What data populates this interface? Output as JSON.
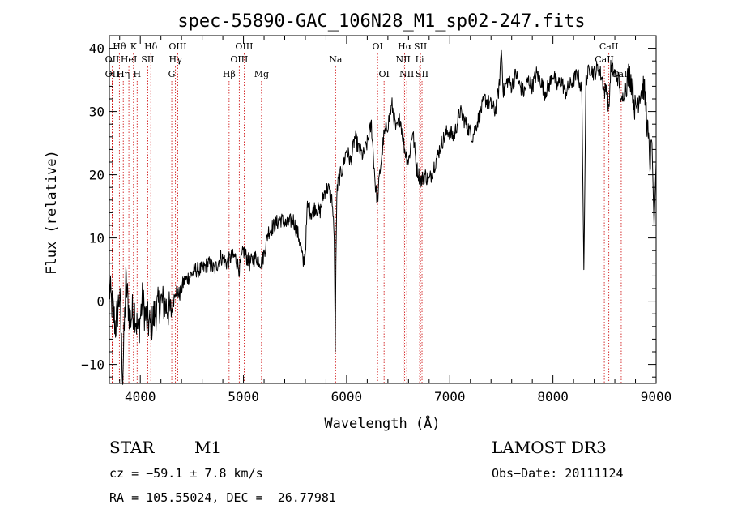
{
  "chart_data": {
    "type": "line",
    "title": "spec-55890-GAC_106N28_M1_sp02-247.fits",
    "xlabel": "Wavelength (Å)",
    "ylabel": "Flux (relative)",
    "xlim": [
      3700,
      9000
    ],
    "ylim": [
      -13,
      42
    ],
    "x_ticks": [
      4000,
      5000,
      6000,
      7000,
      8000,
      9000
    ],
    "y_ticks": [
      -10,
      0,
      10,
      20,
      30,
      40
    ],
    "series": [
      {
        "name": "spectrum",
        "x": [
          3700,
          3760,
          3800,
          3830,
          3860,
          3900,
          3940,
          3980,
          4020,
          4060,
          4100,
          4140,
          4200,
          4260,
          4300,
          4340,
          4380,
          4420,
          4480,
          4540,
          4600,
          4660,
          4720,
          4780,
          4840,
          4880,
          4920,
          4960,
          5000,
          5060,
          5120,
          5180,
          5240,
          5300,
          5360,
          5420,
          5480,
          5540,
          5580,
          5600,
          5620,
          5660,
          5700,
          5740,
          5780,
          5820,
          5860,
          5880,
          5890,
          5896,
          5905,
          5920,
          5960,
          6000,
          6040,
          6080,
          6120,
          6160,
          6200,
          6240,
          6280,
          6300,
          6320,
          6360,
          6400,
          6440,
          6480,
          6520,
          6563,
          6600,
          6640,
          6680,
          6720,
          6760,
          6800,
          6860,
          6920,
          6980,
          7040,
          7100,
          7160,
          7220,
          7280,
          7340,
          7400,
          7440,
          7480,
          7500,
          7520,
          7560,
          7600,
          7640,
          7680,
          7720,
          7760,
          7800,
          7840,
          7880,
          7920,
          7960,
          8000,
          8040,
          8080,
          8120,
          8160,
          8200,
          8240,
          8280,
          8300,
          8320,
          8360,
          8400,
          8440,
          8480,
          8498,
          8520,
          8542,
          8560,
          8600,
          8640,
          8662,
          8700,
          8740,
          8760,
          8800,
          8840,
          8880,
          8900,
          8940,
          8960,
          8980,
          9000
        ],
        "y": [
          2,
          -4,
          1,
          -12,
          3,
          -3,
          -1,
          -5,
          0,
          -3,
          -4,
          -2,
          0,
          -1,
          -2,
          2,
          1,
          3,
          4,
          5,
          5,
          6,
          5,
          7,
          6,
          7,
          7,
          5,
          8,
          6,
          7,
          6,
          11,
          12,
          13,
          12,
          13,
          10,
          6,
          8,
          15,
          14,
          15,
          14,
          17,
          18,
          16,
          10,
          -8,
          6,
          17,
          19,
          21,
          24,
          22,
          26,
          24,
          23,
          25,
          28,
          18,
          16,
          20,
          26,
          28,
          31,
          27,
          29,
          24,
          22,
          27,
          21,
          19,
          20,
          19,
          22,
          25,
          27,
          26,
          30,
          28,
          26,
          29,
          32,
          31,
          30,
          34,
          40,
          33,
          35,
          34,
          36,
          34,
          33,
          35,
          34,
          36,
          35,
          33,
          34,
          36,
          34,
          35,
          33,
          34,
          35,
          36,
          33,
          5,
          35,
          37,
          36,
          37,
          35,
          33,
          34,
          30,
          37,
          36,
          35,
          31,
          34,
          36,
          35,
          30,
          33,
          34,
          31,
          22,
          25,
          12,
          22
        ]
      }
    ],
    "lines": [
      {
        "label": "Hθ",
        "x": 3797,
        "row": 0
      },
      {
        "label": "OII",
        "x": 3727,
        "row": 1
      },
      {
        "label": "OII",
        "x": 3727,
        "row": 2
      },
      {
        "label": "K",
        "x": 3934,
        "row": 0
      },
      {
        "label": "HeI",
        "x": 3889,
        "row": 1
      },
      {
        "label": "Hη",
        "x": 3835,
        "row": 2
      },
      {
        "label": "Hδ",
        "x": 4102,
        "row": 0
      },
      {
        "label": "SII",
        "x": 4072,
        "row": 1
      },
      {
        "label": "H",
        "x": 3969,
        "row": 2
      },
      {
        "label": "OIII",
        "x": 4363,
        "row": 0
      },
      {
        "label": "Hγ",
        "x": 4341,
        "row": 1
      },
      {
        "label": "G",
        "x": 4305,
        "row": 2
      },
      {
        "label": "OIII",
        "x": 5007,
        "row": 0
      },
      {
        "label": "OIII",
        "x": 4959,
        "row": 1
      },
      {
        "label": "Hβ",
        "x": 4861,
        "row": 2
      },
      {
        "label": "Mg",
        "x": 5175,
        "row": 2
      },
      {
        "label": "Na",
        "x": 5893,
        "row": 1
      },
      {
        "label": "OI",
        "x": 6300,
        "row": 0
      },
      {
        "label": "OI",
        "x": 6363,
        "row": 2
      },
      {
        "label": "Hα",
        "x": 6563,
        "row": 0
      },
      {
        "label": "SII",
        "x": 6716,
        "row": 0
      },
      {
        "label": "NII",
        "x": 6548,
        "row": 1
      },
      {
        "label": "Li",
        "x": 6708,
        "row": 1
      },
      {
        "label": "NII",
        "x": 6583,
        "row": 2
      },
      {
        "label": "SII",
        "x": 6731,
        "row": 2
      },
      {
        "label": "CaII",
        "x": 8542,
        "row": 0
      },
      {
        "label": "CaII",
        "x": 8498,
        "row": 1
      },
      {
        "label": "CaII",
        "x": 8662,
        "row": 2
      }
    ]
  },
  "info": {
    "object_class": "STAR",
    "subclass": "M1",
    "survey": "LAMOST DR3",
    "cz": "cz = −59.1 ± 7.8 km/s",
    "obs_date": "Obs−Date: 20111124",
    "coords": "RA = 105.55024, DEC =  26.77981"
  }
}
